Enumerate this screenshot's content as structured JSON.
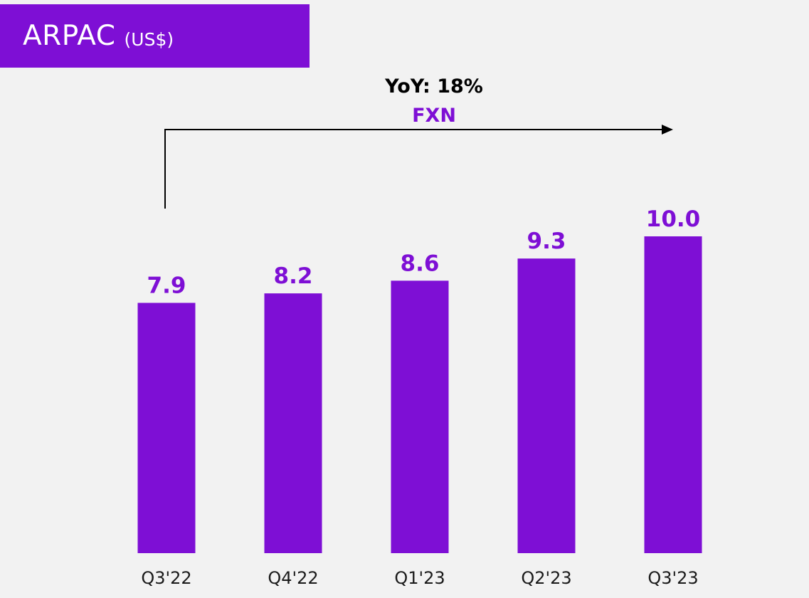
{
  "header": {
    "title": "ARPAC",
    "unit": "(US$)"
  },
  "annotation": {
    "yoy": "YoY: 18%",
    "fxn": "FXN"
  },
  "colors": {
    "accent": "#7e0fd5",
    "background": "#f2f2f2",
    "arrow": "#000000"
  },
  "chart_data": {
    "type": "bar",
    "categories": [
      "Q3'22",
      "Q4'22",
      "Q1'23",
      "Q2'23",
      "Q3'23"
    ],
    "values": [
      7.9,
      8.2,
      8.6,
      9.3,
      10.0
    ],
    "value_labels": [
      "7.9",
      "8.2",
      "8.6",
      "9.3",
      "10.0"
    ],
    "title": "ARPAC (US$)",
    "xlabel": "",
    "ylabel": "",
    "ylim": [
      0,
      10.5
    ],
    "grid": false,
    "legend": "none"
  }
}
